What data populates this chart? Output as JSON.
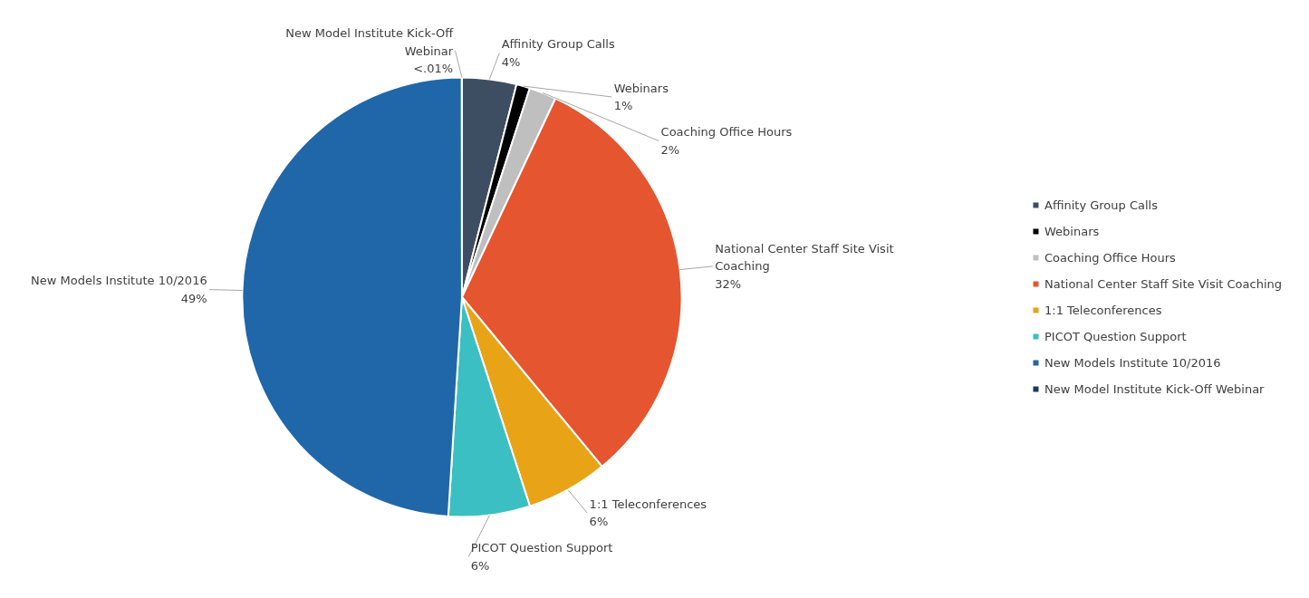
{
  "chart_data": {
    "type": "pie",
    "categories": [
      "Affinity Group Calls",
      "Webinars",
      "Coaching Office Hours",
      "National Center Staff Site Visit Coaching",
      "1:1 Teleconferences",
      "PICOT Question Support",
      "New Models Institute 10/2016",
      "New Model Institute Kick-Off Webinar"
    ],
    "values": [
      4,
      1,
      2,
      32,
      6,
      6,
      49,
      0.01
    ],
    "value_labels": [
      "4%",
      "1%",
      "2%",
      "32%",
      "6%",
      "6%",
      "49%",
      "<.01%"
    ],
    "colors": [
      "#3e4e62",
      "#000000",
      "#bfbfbf",
      "#e55530",
      "#e8a317",
      "#3bbfc2",
      "#1f67a8",
      "#1c3a5e"
    ],
    "legend": "right"
  }
}
